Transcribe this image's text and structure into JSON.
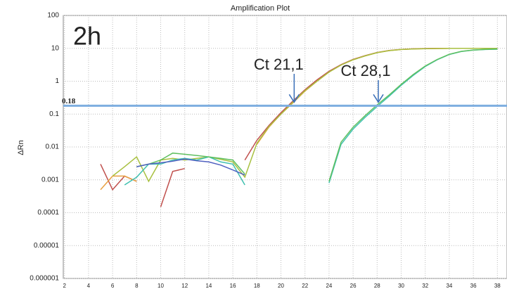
{
  "chart_data": {
    "type": "line",
    "title": "Amplification Plot",
    "ylabel": "ΔRn",
    "label": "2h",
    "log_y": true,
    "grid": true,
    "x": [
      1,
      2,
      3,
      4,
      5,
      6,
      7,
      8,
      9,
      10,
      11,
      12,
      13,
      14,
      15,
      16,
      17,
      18,
      19,
      20,
      21,
      22,
      23,
      24,
      25,
      26,
      27,
      28,
      29,
      30,
      31,
      32,
      33,
      34,
      35,
      36,
      37,
      38
    ],
    "xlim": [
      1.9,
      38.8
    ],
    "xticks": [
      2,
      4,
      6,
      8,
      10,
      12,
      14,
      16,
      18,
      20,
      22,
      24,
      26,
      28,
      30,
      32,
      34,
      36,
      38
    ],
    "ylim": [
      1e-06,
      100
    ],
    "yticks": [
      100,
      10,
      1,
      0.1,
      0.01,
      0.001,
      0.0001,
      1e-05,
      1e-06
    ],
    "threshold": {
      "value": 0.18,
      "color": "#7eaee0",
      "label_color": "#c00000"
    },
    "annotations": [
      {
        "text": "Ct 21,1",
        "x": 21.1
      },
      {
        "text": "Ct 28,1",
        "x": 28.1
      }
    ],
    "series": [
      {
        "color": "#c0504d",
        "values": [
          null,
          null,
          null,
          null,
          0.003,
          0.0005,
          0.0013,
          0.0009,
          null,
          0.00015,
          0.0018,
          0.0022,
          null,
          null,
          null,
          null,
          0.004,
          0.016,
          0.045,
          0.11,
          0.25,
          0.55,
          1.1,
          2,
          3.2,
          4.6,
          6,
          7.5,
          8.6,
          9.3,
          9.7,
          9.9,
          10,
          10,
          10,
          10,
          10,
          10
        ]
      },
      {
        "color": "#e8a040",
        "values": [
          null,
          null,
          null,
          null,
          0.0005,
          0.0013,
          0.0013,
          0.0009,
          null,
          null,
          null,
          null,
          null,
          null,
          null,
          null,
          null,
          0.012,
          0.04,
          0.1,
          0.22,
          0.5,
          1,
          1.9,
          3.1,
          4.5,
          5.9,
          7.4,
          8.5,
          9.2,
          9.6,
          9.8,
          9.9,
          10,
          10,
          10,
          10,
          10
        ]
      },
      {
        "color": "#a8c040",
        "values": [
          null,
          null,
          null,
          null,
          null,
          0.0013,
          0.0025,
          0.005,
          0.0009,
          0.004,
          0.0045,
          0.004,
          0.0045,
          0.005,
          0.0042,
          0.0035,
          0.0012,
          0.013,
          0.042,
          0.1,
          0.23,
          0.52,
          1,
          1.9,
          3.1,
          4.5,
          5.9,
          7.4,
          8.5,
          9.2,
          9.6,
          9.8,
          9.9,
          10,
          10,
          10,
          10,
          10
        ]
      },
      {
        "color": "#40c0b0",
        "values": [
          null,
          null,
          null,
          null,
          null,
          null,
          0.0007,
          0.0012,
          0.003,
          0.003,
          0.004,
          0.0045,
          0.004,
          0.005,
          0.0035,
          0.003,
          0.0007,
          null,
          null,
          null,
          null,
          null,
          null,
          0.0008,
          0.012,
          0.035,
          0.08,
          0.17,
          0.35,
          0.75,
          1.5,
          2.8,
          4.5,
          6.5,
          8,
          8.8,
          9.2,
          9.4
        ]
      },
      {
        "color": "#60c060",
        "values": [
          null,
          null,
          null,
          null,
          null,
          null,
          null,
          0.0025,
          0.003,
          0.004,
          0.0065,
          0.006,
          0.0055,
          0.005,
          0.0045,
          0.004,
          0.0015,
          null,
          null,
          null,
          null,
          null,
          null,
          0.0009,
          0.014,
          0.04,
          0.09,
          0.19,
          0.38,
          0.8,
          1.6,
          2.9,
          4.6,
          6.6,
          8.1,
          8.9,
          9.3,
          9.5
        ]
      },
      {
        "color": "#5060c0",
        "values": [
          null,
          null,
          null,
          null,
          null,
          null,
          null,
          0.0025,
          0.003,
          0.0033,
          0.0037,
          0.0043,
          0.0038,
          0.0035,
          0.0028,
          0.002,
          0.0014,
          null,
          null,
          null,
          null,
          null,
          null,
          null,
          null,
          null,
          null,
          null,
          null,
          null,
          null,
          null,
          null,
          null,
          null,
          null,
          null,
          null
        ]
      }
    ]
  }
}
